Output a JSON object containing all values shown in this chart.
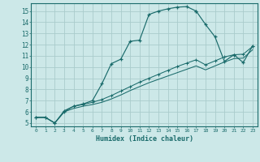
{
  "xlabel": "Humidex (Indice chaleur)",
  "bg_color": "#cce8e8",
  "grid_color": "#aacccc",
  "line_color": "#1a6b6b",
  "xlim": [
    -0.5,
    23.5
  ],
  "ylim": [
    4.7,
    15.7
  ],
  "yticks": [
    5,
    6,
    7,
    8,
    9,
    10,
    11,
    12,
    13,
    14,
    15
  ],
  "xticks": [
    0,
    1,
    2,
    3,
    4,
    5,
    6,
    7,
    8,
    9,
    10,
    11,
    12,
    13,
    14,
    15,
    16,
    17,
    18,
    19,
    20,
    21,
    22,
    23
  ],
  "curve1_x": [
    0,
    1,
    2,
    3,
    4,
    5,
    6,
    7,
    8,
    9,
    10,
    11,
    12,
    13,
    14,
    15,
    16,
    17
  ],
  "curve1_y": [
    5.5,
    5.5,
    5.0,
    6.0,
    6.5,
    6.7,
    7.0,
    8.5,
    10.3,
    10.7,
    12.3,
    12.4,
    14.7,
    15.0,
    15.2,
    15.35,
    15.4,
    15.0
  ],
  "curve2_x": [
    17,
    18,
    19,
    20,
    21,
    22,
    23
  ],
  "curve2_y": [
    15.0,
    13.8,
    12.7,
    10.5,
    11.1,
    10.4,
    11.9
  ],
  "curve3_x": [
    0,
    1,
    2,
    3,
    4,
    5,
    6,
    7,
    8,
    9,
    10,
    11,
    12,
    13,
    14,
    15,
    16,
    17,
    18,
    19,
    20,
    21,
    22,
    23
  ],
  "curve3_y": [
    5.5,
    5.5,
    5.0,
    6.1,
    6.5,
    6.65,
    6.85,
    7.1,
    7.45,
    7.85,
    8.25,
    8.65,
    9.0,
    9.35,
    9.7,
    10.05,
    10.35,
    10.65,
    10.2,
    10.55,
    10.9,
    11.1,
    11.15,
    11.85
  ],
  "curve4_x": [
    0,
    1,
    2,
    3,
    4,
    5,
    6,
    7,
    8,
    9,
    10,
    11,
    12,
    13,
    14,
    15,
    16,
    17,
    18,
    19,
    20,
    21,
    22,
    23
  ],
  "curve4_y": [
    5.5,
    5.5,
    5.0,
    6.0,
    6.3,
    6.5,
    6.65,
    6.85,
    7.15,
    7.5,
    7.9,
    8.25,
    8.6,
    8.9,
    9.2,
    9.5,
    9.8,
    10.1,
    9.75,
    10.1,
    10.45,
    10.75,
    10.8,
    11.55
  ]
}
